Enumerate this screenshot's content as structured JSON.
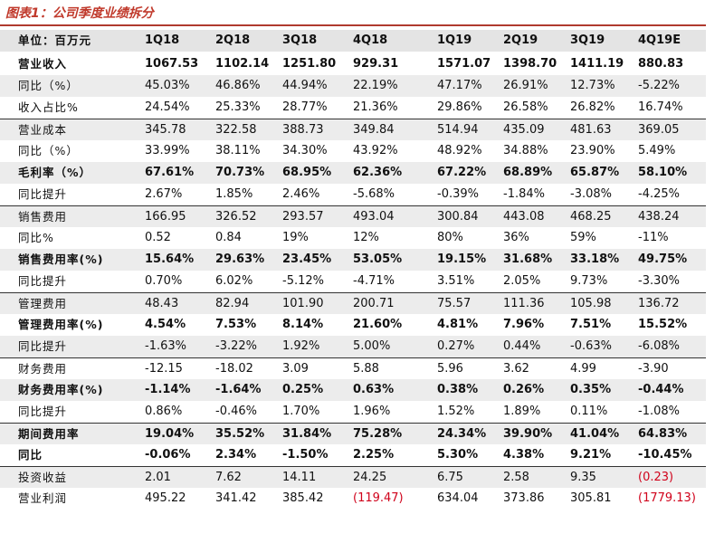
{
  "title": "图表1：公司季度业绩拆分",
  "header": {
    "unit": "单位：百万元",
    "columns": [
      "1Q18",
      "2Q18",
      "3Q18",
      "4Q18",
      "1Q19",
      "2Q19",
      "3Q19",
      "4Q19E"
    ]
  },
  "groups": [
    {
      "rows": [
        {
          "label": "营业收入",
          "bold": true,
          "values": [
            "1067.53",
            "1102.14",
            "1251.80",
            "929.31",
            "1571.07",
            "1398.70",
            "1411.19",
            "880.83"
          ]
        },
        {
          "label": "同比（%）",
          "values": [
            "45.03%",
            "46.86%",
            "44.94%",
            "22.19%",
            "47.17%",
            "26.91%",
            "12.73%",
            "-5.22%"
          ]
        },
        {
          "label": "收入占比%",
          "values": [
            "24.54%",
            "25.33%",
            "28.77%",
            "21.36%",
            "29.86%",
            "26.58%",
            "26.82%",
            "16.74%"
          ]
        }
      ]
    },
    {
      "rows": [
        {
          "label": "营业成本",
          "values": [
            "345.78",
            "322.58",
            "388.73",
            "349.84",
            "514.94",
            "435.09",
            "481.63",
            "369.05"
          ]
        },
        {
          "label": "同比（%）",
          "values": [
            "33.99%",
            "38.11%",
            "34.30%",
            "43.92%",
            "48.92%",
            "34.88%",
            "23.90%",
            "5.49%"
          ]
        },
        {
          "label": "毛利率（%）",
          "bold": true,
          "values": [
            "67.61%",
            "70.73%",
            "68.95%",
            "62.36%",
            "67.22%",
            "68.89%",
            "65.87%",
            "58.10%"
          ]
        },
        {
          "label": "同比提升",
          "values": [
            "2.67%",
            "1.85%",
            "2.46%",
            "-5.68%",
            "-0.39%",
            "-1.84%",
            "-3.08%",
            "-4.25%"
          ]
        }
      ]
    },
    {
      "rows": [
        {
          "label": "销售费用",
          "values": [
            "166.95",
            "326.52",
            "293.57",
            "493.04",
            "300.84",
            "443.08",
            "468.25",
            "438.24"
          ]
        },
        {
          "label": "同比%",
          "values": [
            "0.52",
            "0.84",
            "19%",
            "12%",
            "80%",
            "36%",
            "59%",
            "-11%"
          ]
        },
        {
          "label": "销售费用率(%)",
          "bold": true,
          "values": [
            "15.64%",
            "29.63%",
            "23.45%",
            "53.05%",
            "19.15%",
            "31.68%",
            "33.18%",
            "49.75%"
          ]
        },
        {
          "label": "同比提升",
          "values": [
            "0.70%",
            "6.02%",
            "-5.12%",
            "-4.71%",
            "3.51%",
            "2.05%",
            "9.73%",
            "-3.30%"
          ]
        }
      ]
    },
    {
      "rows": [
        {
          "label": "管理费用",
          "values": [
            "48.43",
            "82.94",
            "101.90",
            "200.71",
            "75.57",
            "111.36",
            "105.98",
            "136.72"
          ]
        },
        {
          "label": "管理费用率(%)",
          "bold": true,
          "values": [
            "4.54%",
            "7.53%",
            "8.14%",
            "21.60%",
            "4.81%",
            "7.96%",
            "7.51%",
            "15.52%"
          ]
        },
        {
          "label": "同比提升",
          "values": [
            "-1.63%",
            "-3.22%",
            "1.92%",
            "5.00%",
            "0.27%",
            "0.44%",
            "-0.63%",
            "-6.08%"
          ]
        }
      ]
    },
    {
      "rows": [
        {
          "label": "财务费用",
          "values": [
            "-12.15",
            "-18.02",
            "3.09",
            "5.88",
            "5.96",
            "3.62",
            "4.99",
            "-3.90"
          ]
        },
        {
          "label": "财务费用率(%)",
          "bold": true,
          "values": [
            "-1.14%",
            "-1.64%",
            "0.25%",
            "0.63%",
            "0.38%",
            "0.26%",
            "0.35%",
            "-0.44%"
          ]
        },
        {
          "label": "同比提升",
          "values": [
            "0.86%",
            "-0.46%",
            "1.70%",
            "1.96%",
            "1.52%",
            "1.89%",
            "0.11%",
            "-1.08%"
          ]
        }
      ]
    },
    {
      "rows": [
        {
          "label": "期间费用率",
          "bold": true,
          "values": [
            "19.04%",
            "35.52%",
            "31.84%",
            "75.28%",
            "24.34%",
            "39.90%",
            "41.04%",
            "64.83%"
          ]
        },
        {
          "label": "同比",
          "bold": true,
          "values": [
            "-0.06%",
            "2.34%",
            "-1.50%",
            "2.25%",
            "5.30%",
            "4.38%",
            "9.21%",
            "-10.45%"
          ]
        }
      ]
    },
    {
      "rows": [
        {
          "label": "投资收益",
          "values": [
            "2.01",
            "7.62",
            "14.11",
            "24.25",
            "6.75",
            "2.58",
            "9.35",
            "(0.23)"
          ]
        },
        {
          "label": "营业利润",
          "values": [
            "495.22",
            "341.42",
            "385.42",
            "(119.47)",
            "634.04",
            "373.86",
            "305.81",
            "(1779.13)"
          ]
        }
      ]
    }
  ]
}
